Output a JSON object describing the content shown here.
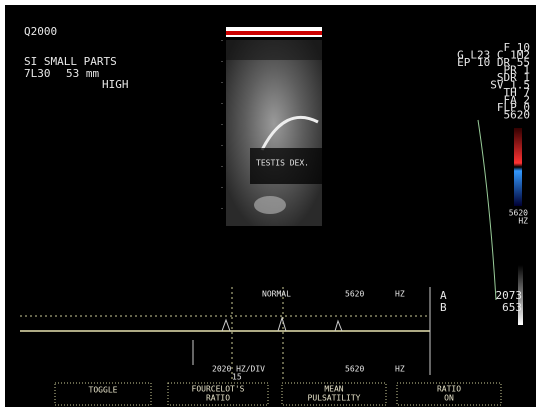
{
  "header": {
    "id": "Q2000",
    "preset": "SI SMALL PARTS",
    "probe": "7L30",
    "depth": "53 mm",
    "power": "HIGH"
  },
  "right_params": [
    "F  10",
    "G L23  C 1M2",
    "EP 10  DR 55",
    "PR 1",
    "SDR 1",
    "SV 1.5",
    "TH 7",
    "FA 2",
    "FLP 0",
    "5620"
  ],
  "image_label": "TESTIS DEX.",
  "color_scale": {
    "value": "5620",
    "unit": "HZ"
  },
  "doppler": {
    "mode": "NORMAL",
    "top_value": "5620",
    "top_unit": "HZ",
    "cursor_a": "A",
    "cursor_b": "B",
    "value_a": "2073",
    "value_b": "653",
    "scale": "2020 HZ/DIV",
    "scale_sub": "15",
    "bottom_value": "5620",
    "bottom_unit": "HZ"
  },
  "menu": [
    [
      "TOGGLE"
    ],
    [
      "FOURCELOT'S",
      "RATIO"
    ],
    [
      "MEAN",
      "PULSATILITY"
    ],
    [
      "RATIO",
      "ON"
    ]
  ]
}
